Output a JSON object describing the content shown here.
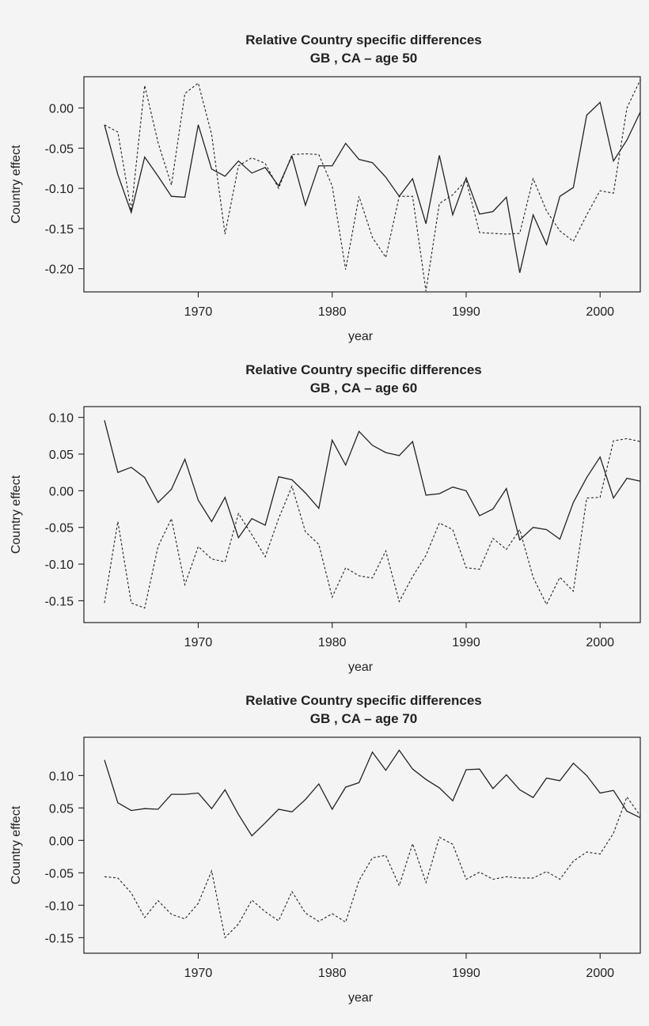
{
  "colors": {
    "line": "#222222",
    "background": "#f4f4f4"
  },
  "chart_data": [
    {
      "type": "line",
      "title": "Relative Country specific differences",
      "subtitle": "GB , CA – age 50",
      "xlabel": "year",
      "ylabel": "Country effect",
      "xlim": [
        1963,
        2003
      ],
      "ylim": [
        -0.22,
        0.03
      ],
      "xticks": [
        1970,
        1980,
        1990,
        2000
      ],
      "yticks": [
        0.0,
        -0.05,
        -0.1,
        -0.15,
        -0.2
      ],
      "ytick_labels": [
        "0.00",
        "-0.05",
        "-0.10",
        "-0.15",
        "-0.20"
      ],
      "grid": false,
      "x": [
        1963,
        1964,
        1965,
        1966,
        1967,
        1968,
        1969,
        1970,
        1971,
        1972,
        1973,
        1974,
        1975,
        1976,
        1977,
        1978,
        1979,
        1980,
        1981,
        1982,
        1983,
        1984,
        1985,
        1986,
        1987,
        1988,
        1989,
        1990,
        1991,
        1992,
        1993,
        1994,
        1995,
        1996,
        1997,
        1998,
        1999,
        2000,
        2001,
        2002,
        2003
      ],
      "series": [
        {
          "style": "solid",
          "values": [
            -0.021,
            -0.083,
            -0.13,
            -0.061,
            -0.085,
            -0.11,
            -0.111,
            -0.021,
            -0.076,
            -0.085,
            -0.066,
            -0.081,
            -0.074,
            -0.097,
            -0.06,
            -0.121,
            -0.072,
            -0.072,
            -0.044,
            -0.064,
            -0.068,
            -0.086,
            -0.11,
            -0.088,
            -0.144,
            -0.059,
            -0.133,
            -0.087,
            -0.132,
            -0.129,
            -0.111,
            -0.205,
            -0.133,
            -0.17,
            -0.11,
            -0.099,
            -0.009,
            0.007,
            -0.066,
            -0.04,
            -0.005
          ]
        },
        {
          "style": "dashed",
          "values": [
            -0.021,
            -0.03,
            -0.128,
            0.028,
            -0.043,
            -0.096,
            0.018,
            0.031,
            -0.033,
            -0.157,
            -0.072,
            -0.062,
            -0.069,
            -0.1,
            -0.058,
            -0.057,
            -0.058,
            -0.097,
            -0.201,
            -0.11,
            -0.161,
            -0.186,
            -0.11,
            -0.11,
            -0.228,
            -0.119,
            -0.108,
            -0.09,
            -0.155,
            -0.156,
            -0.157,
            -0.156,
            -0.088,
            -0.128,
            -0.153,
            -0.166,
            -0.133,
            -0.103,
            -0.106,
            0.0,
            0.035
          ]
        }
      ]
    },
    {
      "type": "line",
      "title": "Relative Country specific differences",
      "subtitle": "GB , CA – age 60",
      "xlabel": "year",
      "ylabel": "Country effect",
      "xlim": [
        1963,
        2003
      ],
      "ylim": [
        -0.17,
        0.105
      ],
      "xticks": [
        1970,
        1980,
        1990,
        2000
      ],
      "yticks": [
        0.1,
        0.05,
        0.0,
        -0.05,
        -0.1,
        -0.15
      ],
      "ytick_labels": [
        "0.10",
        "0.05",
        "0.00",
        "-0.05",
        "-0.10",
        "-0.15"
      ],
      "grid": false,
      "x": [
        1963,
        1964,
        1965,
        1966,
        1967,
        1968,
        1969,
        1970,
        1971,
        1972,
        1973,
        1974,
        1975,
        1976,
        1977,
        1978,
        1979,
        1980,
        1981,
        1982,
        1983,
        1984,
        1985,
        1986,
        1987,
        1988,
        1989,
        1990,
        1991,
        1992,
        1993,
        1994,
        1995,
        1996,
        1997,
        1998,
        1999,
        2000,
        2001,
        2002,
        2003
      ],
      "series": [
        {
          "style": "solid",
          "values": [
            0.096,
            0.025,
            0.032,
            0.018,
            -0.016,
            0.002,
            0.043,
            -0.013,
            -0.042,
            -0.009,
            -0.064,
            -0.038,
            -0.047,
            0.019,
            0.015,
            -0.003,
            -0.024,
            0.069,
            0.035,
            0.081,
            0.062,
            0.052,
            0.048,
            0.067,
            -0.006,
            -0.004,
            0.005,
            0.0,
            -0.034,
            -0.025,
            0.003,
            -0.067,
            -0.05,
            -0.053,
            -0.066,
            -0.016,
            0.018,
            0.046,
            -0.01,
            0.017,
            0.013
          ]
        },
        {
          "style": "dashed",
          "values": [
            -0.153,
            -0.042,
            -0.153,
            -0.16,
            -0.076,
            -0.038,
            -0.128,
            -0.076,
            -0.093,
            -0.097,
            -0.031,
            -0.06,
            -0.09,
            -0.038,
            0.006,
            -0.056,
            -0.073,
            -0.145,
            -0.105,
            -0.116,
            -0.119,
            -0.082,
            -0.151,
            -0.117,
            -0.088,
            -0.044,
            -0.053,
            -0.105,
            -0.107,
            -0.065,
            -0.08,
            -0.053,
            -0.118,
            -0.155,
            -0.118,
            -0.137,
            -0.01,
            -0.009,
            0.068,
            0.071,
            0.067
          ]
        }
      ]
    },
    {
      "type": "line",
      "title": "Relative Country specific differences",
      "subtitle": "GB , CA – age 70",
      "xlabel": "year",
      "ylabel": "Country effect",
      "xlim": [
        1963,
        2003
      ],
      "ylim": [
        -0.163,
        0.148
      ],
      "xticks": [
        1970,
        1980,
        1990,
        2000
      ],
      "yticks": [
        0.1,
        0.05,
        0.0,
        -0.05,
        -0.1,
        -0.15
      ],
      "ytick_labels": [
        "0.10",
        "0.05",
        "0.00",
        "-0.05",
        "-0.10",
        "-0.15"
      ],
      "grid": false,
      "x": [
        1963,
        1964,
        1965,
        1966,
        1967,
        1968,
        1969,
        1970,
        1971,
        1972,
        1973,
        1974,
        1975,
        1976,
        1977,
        1978,
        1979,
        1980,
        1981,
        1982,
        1983,
        1984,
        1985,
        1986,
        1987,
        1988,
        1989,
        1990,
        1991,
        1992,
        1993,
        1994,
        1995,
        1996,
        1997,
        1998,
        1999,
        2000,
        2001,
        2002,
        2003
      ],
      "series": [
        {
          "style": "solid",
          "values": [
            0.124,
            0.058,
            0.046,
            0.049,
            0.048,
            0.071,
            0.071,
            0.073,
            0.049,
            0.078,
            0.04,
            0.007,
            0.027,
            0.048,
            0.044,
            0.063,
            0.087,
            0.048,
            0.082,
            0.089,
            0.136,
            0.108,
            0.139,
            0.11,
            0.094,
            0.081,
            0.061,
            0.109,
            0.11,
            0.08,
            0.101,
            0.078,
            0.066,
            0.096,
            0.092,
            0.119,
            0.1,
            0.073,
            0.077,
            0.045,
            0.035
          ]
        },
        {
          "style": "dashed",
          "values": [
            -0.056,
            -0.058,
            -0.081,
            -0.119,
            -0.093,
            -0.114,
            -0.121,
            -0.097,
            -0.047,
            -0.15,
            -0.129,
            -0.092,
            -0.11,
            -0.124,
            -0.079,
            -0.112,
            -0.125,
            -0.113,
            -0.126,
            -0.062,
            -0.027,
            -0.023,
            -0.07,
            -0.005,
            -0.065,
            0.005,
            -0.006,
            -0.06,
            -0.049,
            -0.06,
            -0.056,
            -0.058,
            -0.058,
            -0.048,
            -0.06,
            -0.032,
            -0.018,
            -0.021,
            0.011,
            0.067,
            0.038
          ]
        }
      ]
    }
  ]
}
